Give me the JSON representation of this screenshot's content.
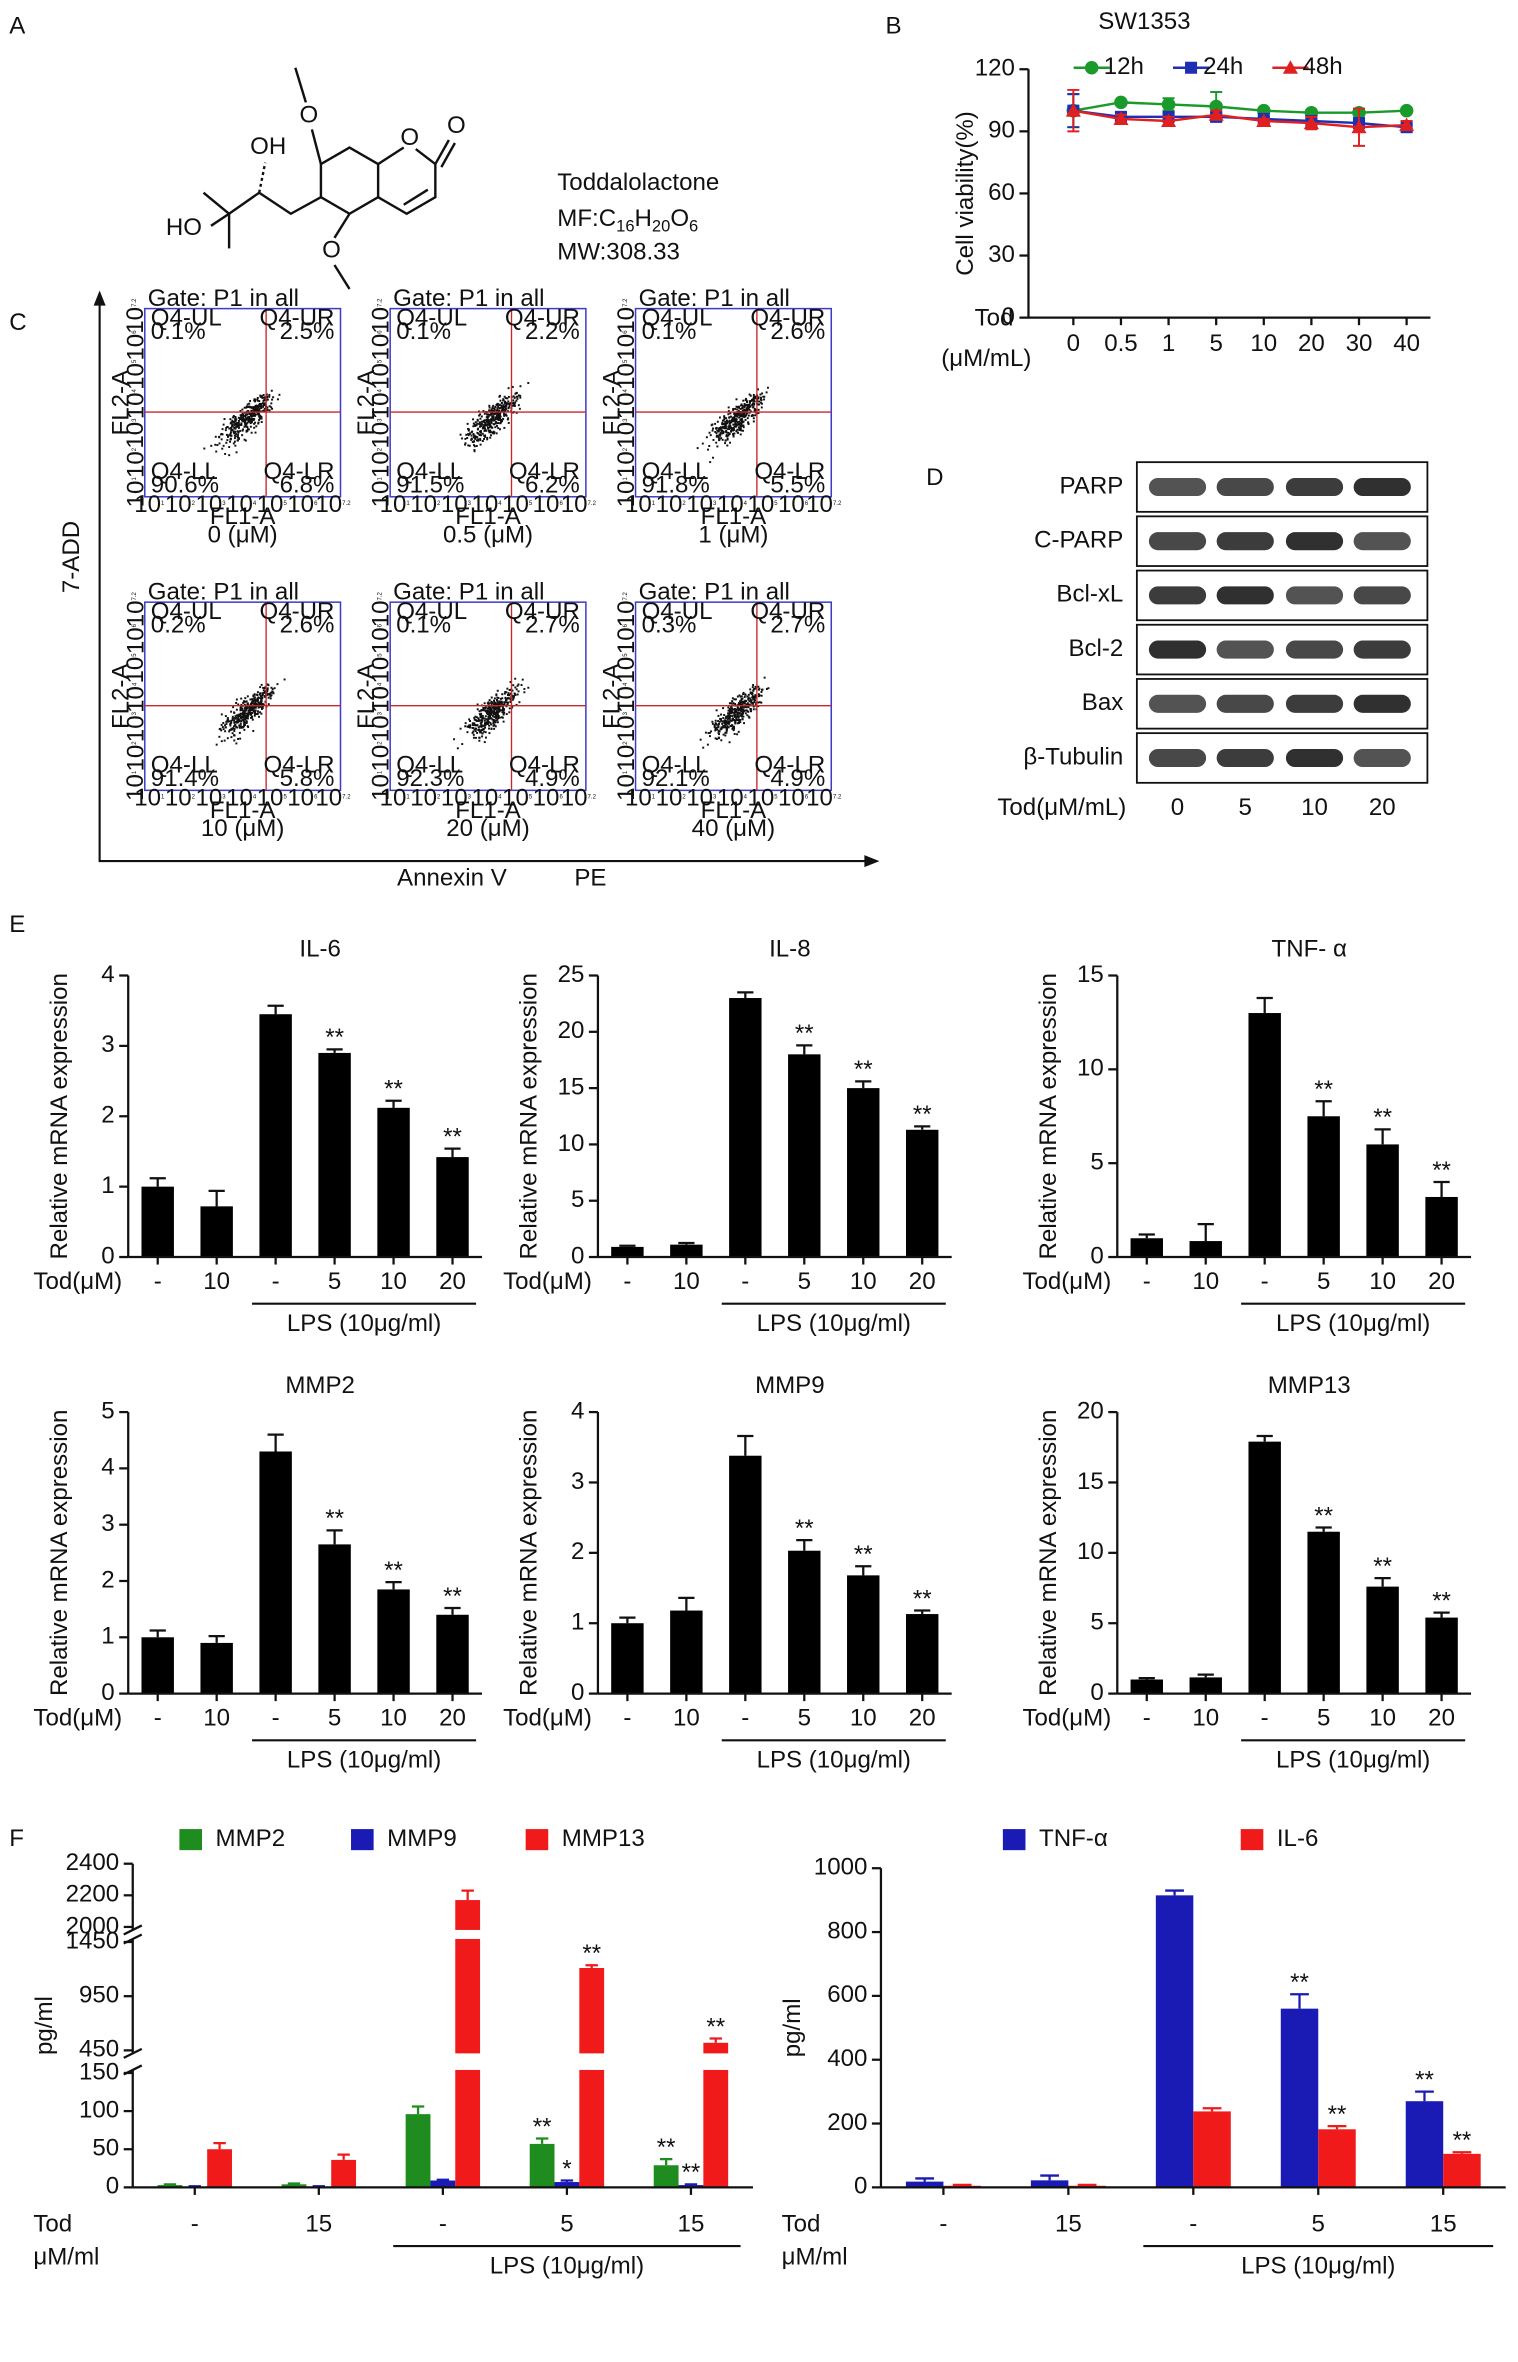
{
  "panel_labels": [
    "A",
    "B",
    "C",
    "D",
    "E",
    "F"
  ],
  "compound": {
    "atoms": [
      "O",
      "OH",
      "O",
      "O",
      "HO",
      "O"
    ],
    "name": "Toddalolactone",
    "formula": [
      "MF:C",
      "16",
      "H",
      "20",
      "O",
      "6"
    ],
    "weight": "MW:308.33"
  },
  "flow": {
    "gate": "Gate: P1 in all",
    "quadrants": [
      "Q4-UL",
      "Q4-UR",
      "Q4-LL",
      "Q4-LR"
    ],
    "x_channel": "FL1-A",
    "y_channel": "FL2-A",
    "tick_base": "10",
    "tick_exponents": [
      "1",
      "2",
      "3",
      "4",
      "5",
      "6",
      "7.2"
    ],
    "y_title": "7-ADD",
    "x_title": [
      "Annexin V",
      "PE"
    ],
    "plots": [
      {
        "label": "0 (μM)",
        "percentages": [
          "0.1%",
          "2.5%",
          "90.6%",
          "6.8%"
        ]
      },
      {
        "label": "0.5 (μM)",
        "percentages": [
          "0.1%",
          "2.2%",
          "91.5%",
          "6.2%"
        ]
      },
      {
        "label": "1 (μM)",
        "percentages": [
          "0.1%",
          "2.6%",
          "91.8%",
          "5.5%"
        ]
      },
      {
        "label": "10 (μM)",
        "percentages": [
          "0.2%",
          "2.6%",
          "91.4%",
          "5.8%"
        ]
      },
      {
        "label": "20 (μM)",
        "percentages": [
          "0.1%",
          "2.7%",
          "92.3%",
          "4.9%"
        ]
      },
      {
        "label": "40 (μM)",
        "percentages": [
          "0.3%",
          "2.7%",
          "92.1%",
          "4.9%"
        ]
      }
    ]
  },
  "western": {
    "bands": [
      "PARP",
      "C-PARP",
      "Bcl-xL",
      "Bcl-2",
      "Bax",
      "β-Tubulin"
    ],
    "x_label": "Tod(μM/mL)",
    "doses": [
      "0",
      "5",
      "10",
      "20"
    ]
  },
  "chart_data": [
    {
      "type": "line",
      "title": "SW1353",
      "ylabel": "Cell viability(%)",
      "xlabel": [
        "Tod",
        "(μM/mL)"
      ],
      "categories": [
        "0",
        "0.5",
        "1",
        "5",
        "10",
        "20",
        "30",
        "40"
      ],
      "ylim": [
        0,
        120
      ],
      "yticks": [
        0,
        30,
        60,
        90,
        120
      ],
      "series": [
        {
          "name": "12h",
          "color": "#1a9a2a",
          "marker": "circle",
          "values": [
            100,
            104,
            103,
            102,
            100,
            99,
            99,
            100
          ],
          "errors": [
            8,
            1,
            3,
            7,
            1,
            1,
            1,
            1
          ]
        },
        {
          "name": "24h",
          "color": "#1f2fb4",
          "marker": "square",
          "values": [
            100,
            97,
            97,
            97,
            96,
            95,
            94,
            92
          ],
          "errors": [
            8,
            2,
            2,
            2,
            1,
            1,
            1,
            1
          ]
        },
        {
          "name": "48h",
          "color": "#e02020",
          "marker": "triangle",
          "values": [
            100,
            96,
            95,
            98,
            95,
            94,
            92,
            93
          ],
          "errors": [
            10,
            2,
            2,
            2,
            1,
            3,
            9,
            2
          ]
        }
      ]
    },
    {
      "type": "bar",
      "title": "IL-6",
      "ylabel": "Relative mRNA expression",
      "xlabel": "Tod(μM)",
      "group_label": "LPS (10μg/ml)",
      "categories": [
        "-",
        "10",
        "-",
        "5",
        "10",
        "20"
      ],
      "values": [
        1.0,
        0.72,
        3.45,
        2.9,
        2.12,
        1.42
      ],
      "errors": [
        0.12,
        0.22,
        0.12,
        0.05,
        0.1,
        0.12
      ],
      "annotations": [
        null,
        null,
        null,
        "**",
        "**",
        "**"
      ],
      "color": "#000000",
      "ylim": [
        0,
        4
      ],
      "yticks": [
        0,
        1,
        2,
        3,
        4
      ]
    },
    {
      "type": "bar",
      "title": "IL-8",
      "ylabel": "Relative mRNA expression",
      "xlabel": "Tod(μM)",
      "group_label": "LPS (10μg/ml)",
      "categories": [
        "-",
        "10",
        "-",
        "5",
        "10",
        "20"
      ],
      "values": [
        0.9,
        1.1,
        23,
        18,
        15,
        11.3
      ],
      "errors": [
        0.1,
        0.15,
        0.5,
        0.8,
        0.6,
        0.3
      ],
      "annotations": [
        null,
        null,
        null,
        "**",
        "**",
        "**"
      ],
      "color": "#000000",
      "ylim": [
        0,
        25
      ],
      "yticks": [
        0,
        5,
        10,
        15,
        20,
        25
      ]
    },
    {
      "type": "bar",
      "title": "TNF- α",
      "ylabel": "Relative mRNA expression",
      "xlabel": "Tod(μM)",
      "group_label": "LPS (10μg/ml)",
      "categories": [
        "-",
        "10",
        "-",
        "5",
        "10",
        "20"
      ],
      "values": [
        1.0,
        0.85,
        13,
        7.5,
        6.0,
        3.2
      ],
      "errors": [
        0.2,
        0.9,
        0.8,
        0.8,
        0.8,
        0.8
      ],
      "annotations": [
        null,
        null,
        null,
        "**",
        "**",
        "**"
      ],
      "color": "#000000",
      "ylim": [
        0,
        15
      ],
      "yticks": [
        0,
        5,
        10,
        15
      ]
    },
    {
      "type": "bar",
      "title": "MMP2",
      "ylabel": "Relative mRNA expression",
      "xlabel": "Tod(μM)",
      "group_label": "LPS (10μg/ml)",
      "categories": [
        "-",
        "10",
        "-",
        "5",
        "10",
        "20"
      ],
      "values": [
        1.0,
        0.9,
        4.3,
        2.65,
        1.85,
        1.4
      ],
      "errors": [
        0.12,
        0.12,
        0.3,
        0.25,
        0.13,
        0.12
      ],
      "annotations": [
        null,
        null,
        null,
        "**",
        "**",
        "**"
      ],
      "color": "#000000",
      "ylim": [
        0,
        5
      ],
      "yticks": [
        0,
        1,
        2,
        3,
        4,
        5
      ]
    },
    {
      "type": "bar",
      "title": "MMP9",
      "ylabel": "Relative mRNA expression",
      "xlabel": "Tod(μM)",
      "group_label": "LPS (10μg/ml)",
      "categories": [
        "-",
        "10",
        "-",
        "5",
        "10",
        "20"
      ],
      "values": [
        1.0,
        1.18,
        3.38,
        2.03,
        1.68,
        1.13
      ],
      "errors": [
        0.08,
        0.18,
        0.28,
        0.15,
        0.13,
        0.05
      ],
      "annotations": [
        null,
        null,
        null,
        "**",
        "**",
        "**"
      ],
      "color": "#000000",
      "ylim": [
        0,
        4
      ],
      "yticks": [
        0,
        1,
        2,
        3,
        4
      ]
    },
    {
      "type": "bar",
      "title": "MMP13",
      "ylabel": "Relative mRNA expression",
      "xlabel": "Tod(μM)",
      "group_label": "LPS (10μg/ml)",
      "categories": [
        "-",
        "10",
        "-",
        "5",
        "10",
        "20"
      ],
      "values": [
        1.0,
        1.15,
        17.9,
        11.5,
        7.6,
        5.4
      ],
      "errors": [
        0.1,
        0.2,
        0.4,
        0.3,
        0.6,
        0.35
      ],
      "annotations": [
        null,
        null,
        null,
        "**",
        "**",
        "**"
      ],
      "color": "#000000",
      "ylim": [
        0,
        20
      ],
      "yticks": [
        0,
        5,
        10,
        15,
        20
      ]
    },
    {
      "type": "bar",
      "ylabel": "pg/ml",
      "xlabel": [
        "Tod",
        "μM/ml"
      ],
      "group_label": "LPS (10μg/ml)",
      "categories": [
        "-",
        "15",
        "-",
        "5",
        "15"
      ],
      "ylim": [
        0,
        2400
      ],
      "y_segments": [
        [
          0,
          150
        ],
        [
          450,
          1450
        ],
        [
          2000,
          2400
        ]
      ],
      "yticks": [
        0,
        50,
        100,
        150,
        450,
        950,
        1450,
        2000,
        2200,
        2400
      ],
      "series": [
        {
          "name": "MMP2",
          "color": "#1e8c1e",
          "values": [
            3,
            4,
            96,
            57,
            29
          ],
          "errors": [
            1,
            1,
            10,
            7,
            8
          ],
          "annotations": [
            null,
            null,
            null,
            "**",
            "**"
          ]
        },
        {
          "name": "MMP9",
          "color": "#1a1ab4",
          "values": [
            1,
            1,
            9,
            7,
            3
          ],
          "errors": [
            0.5,
            0.5,
            1,
            2,
            1
          ],
          "annotations": [
            null,
            null,
            null,
            "*",
            "**"
          ]
        },
        {
          "name": "MMP13",
          "color": "#f01a1a",
          "values": [
            50,
            36,
            2170,
            1210,
            520
          ],
          "errors": [
            8,
            7,
            60,
            25,
            40
          ],
          "annotations": [
            null,
            null,
            null,
            "**",
            "**"
          ]
        }
      ]
    },
    {
      "type": "bar",
      "ylabel": "pg/ml",
      "xlabel": [
        "Tod",
        "μM/ml"
      ],
      "group_label": "LPS (10μg/ml)",
      "categories": [
        "-",
        "15",
        "-",
        "5",
        "15"
      ],
      "ylim": [
        0,
        1000
      ],
      "yticks": [
        0,
        200,
        400,
        600,
        800,
        1000
      ],
      "series": [
        {
          "name": "TNF-α",
          "color": "#1a1ab4",
          "values": [
            18,
            22,
            915,
            560,
            270
          ],
          "errors": [
            10,
            15,
            15,
            45,
            30
          ],
          "annotations": [
            null,
            null,
            null,
            "**",
            "**"
          ]
        },
        {
          "name": "IL-6",
          "color": "#f01a1a",
          "values": [
            5,
            5,
            238,
            182,
            105
          ],
          "errors": [
            3,
            3,
            10,
            10,
            5
          ],
          "annotations": [
            null,
            null,
            null,
            "**",
            "**"
          ]
        }
      ]
    }
  ]
}
